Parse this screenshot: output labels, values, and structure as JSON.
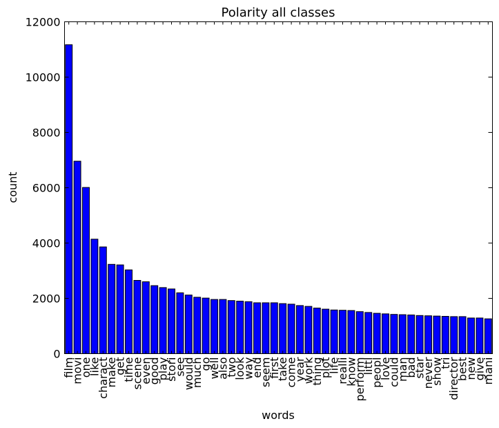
{
  "chart_data": {
    "type": "bar",
    "title": "Polarity all classes",
    "xlabel": "words",
    "ylabel": "count",
    "ylim": [
      0,
      12000
    ],
    "yticks": [
      0,
      2000,
      4000,
      6000,
      8000,
      10000,
      12000
    ],
    "grid": false,
    "bar_color": "#0000ff",
    "categories": [
      "film",
      "movi",
      "one",
      "like",
      "charact",
      "make",
      "get",
      "time",
      "scene",
      "even",
      "good",
      "play",
      "stori",
      "see",
      "would",
      "much",
      "go",
      "well",
      "also",
      "two",
      "look",
      "way",
      "end",
      "seem",
      "first",
      "take",
      "come",
      "year",
      "work",
      "thing",
      "plot",
      "life",
      "realli",
      "know",
      "perform",
      "littl",
      "peopl",
      "love",
      "could",
      "man",
      "bad",
      "star",
      "never",
      "show",
      "tri",
      "director",
      "best",
      "new",
      "give",
      "mani"
    ],
    "values": [
      11170,
      6960,
      6010,
      4140,
      3860,
      3230,
      3210,
      3030,
      2650,
      2600,
      2460,
      2390,
      2340,
      2200,
      2120,
      2040,
      2010,
      1960,
      1960,
      1920,
      1900,
      1880,
      1840,
      1840,
      1840,
      1810,
      1790,
      1740,
      1710,
      1650,
      1610,
      1580,
      1570,
      1560,
      1520,
      1490,
      1460,
      1440,
      1420,
      1410,
      1400,
      1380,
      1370,
      1360,
      1350,
      1340,
      1340,
      1290,
      1290,
      1260
    ]
  }
}
